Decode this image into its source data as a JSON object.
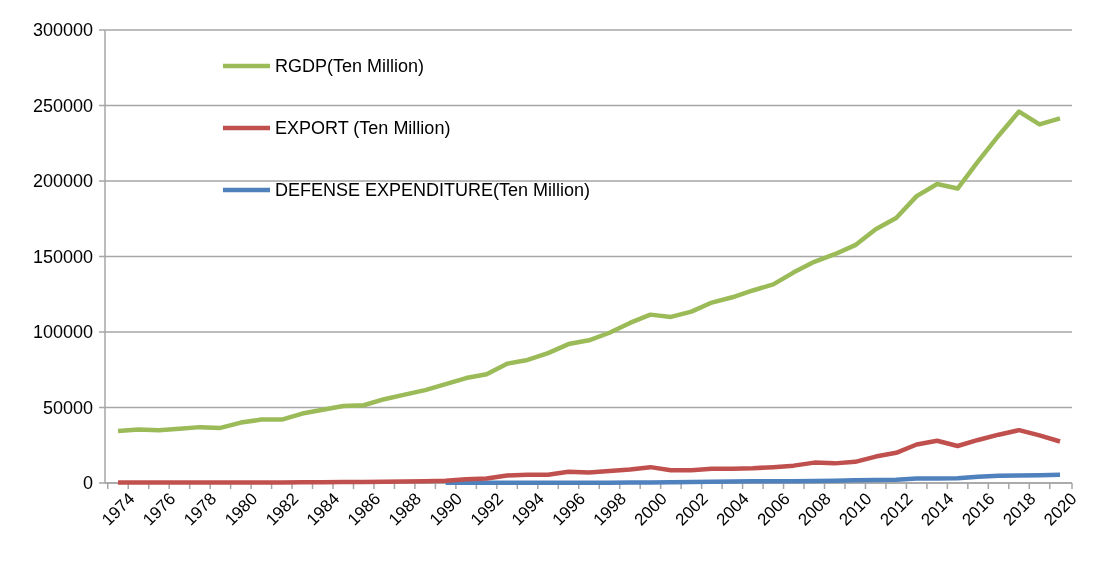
{
  "chart_data": {
    "type": "line",
    "categories": [
      "1974",
      null,
      "1976",
      null,
      "1978",
      null,
      "1980",
      null,
      "1982",
      null,
      "1984",
      null,
      "1986",
      null,
      "1988",
      null,
      "1990",
      null,
      "1992",
      null,
      "1994",
      null,
      "1996",
      null,
      "1998",
      null,
      "2000",
      null,
      "2002",
      null,
      "2004",
      null,
      "2006",
      null,
      "2008",
      null,
      "2010",
      null,
      "2012",
      null,
      "2014",
      null,
      "2016",
      null,
      "2018",
      null,
      "2020"
    ],
    "series": [
      {
        "name": "RGDP(Ten Million)",
        "color": "#9bbb59",
        "values": [
          34500,
          35500,
          35000,
          36000,
          37000,
          36500,
          40000,
          42000,
          42000,
          46000,
          48500,
          51000,
          51500,
          55500,
          58500,
          61500,
          65500,
          69500,
          72000,
          79000,
          81500,
          86000,
          92000,
          94500,
          99500,
          106000,
          111500,
          110000,
          113500,
          119500,
          123000,
          127500,
          131500,
          139500,
          146500,
          151500,
          157500,
          168000,
          175500,
          190000,
          198000,
          195000,
          213000,
          230000,
          246000,
          237500,
          241500
        ]
      },
      {
        "name": "EXPORT (Ten Million)",
        "color": "#c0504d",
        "values": [
          300,
          300,
          300,
          300,
          300,
          300,
          400,
          400,
          400,
          500,
          500,
          600,
          700,
          800,
          1000,
          1200,
          1500,
          2500,
          3000,
          5000,
          5500,
          5500,
          7500,
          7000,
          8000,
          9000,
          10500,
          8500,
          8500,
          9500,
          9500,
          9800,
          10500,
          11500,
          13500,
          13000,
          14000,
          17500,
          20000,
          25500,
          28000,
          24500,
          28500,
          32000,
          35000,
          31500,
          27500
        ]
      },
      {
        "name": "DEFENSE EXPENDITURE(Ten Million)",
        "color": "#4f81bd",
        "values": [
          null,
          null,
          null,
          null,
          null,
          null,
          null,
          null,
          null,
          null,
          null,
          null,
          null,
          null,
          null,
          null,
          100,
          100,
          100,
          200,
          200,
          200,
          200,
          200,
          200,
          300,
          400,
          500,
          700,
          900,
          1000,
          1100,
          1200,
          1200,
          1400,
          1500,
          1800,
          2000,
          2200,
          3000,
          3000,
          3200,
          4200,
          4800,
          5000,
          5200,
          5500
        ]
      }
    ],
    "ylim": [
      0,
      300000
    ],
    "yticks": [
      0,
      50000,
      100000,
      150000,
      200000,
      250000,
      300000
    ],
    "grid": "y",
    "legend": "top left",
    "line_style": "solid",
    "marker": "none"
  }
}
